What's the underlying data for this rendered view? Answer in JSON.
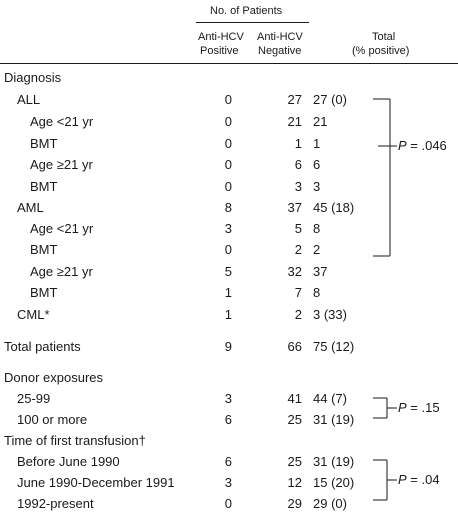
{
  "header": {
    "group_label": "No. of Patients",
    "col_pos_line1": "Anti-HCV",
    "col_pos_line2": "Positive",
    "col_neg_line1": "Anti-HCV",
    "col_neg_line2": "Negative",
    "col_total_line1": "Total",
    "col_total_line2": "(% positive)"
  },
  "rows": [
    {
      "label": "Diagnosis",
      "pos": "",
      "neg": "",
      "total": ""
    },
    {
      "label": "ALL",
      "pos": "0",
      "neg": "27",
      "total": "27 (0)"
    },
    {
      "label": "Age <21 yr",
      "pos": "0",
      "neg": "21",
      "total": "21"
    },
    {
      "label": "BMT",
      "pos": "0",
      "neg": "1",
      "total": "1"
    },
    {
      "label": "Age ≥21 yr",
      "pos": "0",
      "neg": "6",
      "total": "6"
    },
    {
      "label": "BMT",
      "pos": "0",
      "neg": "3",
      "total": "3"
    },
    {
      "label": "AML",
      "pos": "8",
      "neg": "37",
      "total": "45 (18)"
    },
    {
      "label": "Age <21 yr",
      "pos": "3",
      "neg": "5",
      "total": "8"
    },
    {
      "label": "BMT",
      "pos": "0",
      "neg": "2",
      "total": "2"
    },
    {
      "label": "Age ≥21 yr",
      "pos": "5",
      "neg": "32",
      "total": "37"
    },
    {
      "label": "BMT",
      "pos": "1",
      "neg": "7",
      "total": "8"
    },
    {
      "label": "CML*",
      "pos": "1",
      "neg": "2",
      "total": "3 (33)"
    },
    {
      "label": "Total patients",
      "pos": "9",
      "neg": "66",
      "total": "75 (12)"
    },
    {
      "label": "Donor exposures",
      "pos": "",
      "neg": "",
      "total": ""
    },
    {
      "label": "25-99",
      "pos": "3",
      "neg": "41",
      "total": "44 (7)"
    },
    {
      "label": "100 or more",
      "pos": "6",
      "neg": "25",
      "total": "31 (19)"
    },
    {
      "label": "Time of first transfusion†",
      "pos": "",
      "neg": "",
      "total": ""
    },
    {
      "label": "Before June 1990",
      "pos": "6",
      "neg": "25",
      "total": "31 (19)"
    },
    {
      "label": "June 1990-December 1991",
      "pos": "3",
      "neg": "12",
      "total": "15 (20)"
    },
    {
      "label": "1992-present",
      "pos": "0",
      "neg": "29",
      "total": "29 (0)"
    }
  ],
  "pvalues": {
    "diagnosis": "P = .046",
    "donor": "P = .15",
    "transfusion": "P = .04"
  }
}
